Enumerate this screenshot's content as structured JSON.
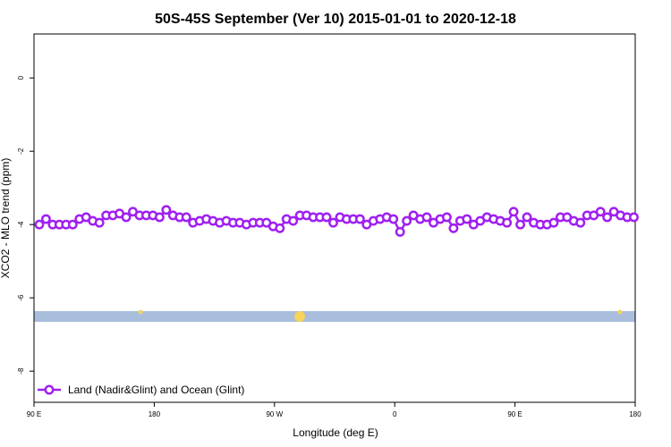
{
  "chart_data": {
    "type": "line",
    "title": "50S-45S September (Ver 10)   2015-01-01 to 2020-12-18",
    "x_label": "Longitude (deg E)",
    "y_label": "XCO2 - MLO trend (ppm)",
    "x": [
      94,
      99,
      104,
      109,
      114,
      119,
      124,
      129,
      134,
      139,
      144,
      149,
      154,
      159,
      164,
      169,
      174,
      179,
      184,
      189,
      194,
      199,
      204,
      209,
      214,
      219,
      224,
      229,
      234,
      239,
      244,
      249,
      254,
      259,
      264,
      269,
      274,
      279,
      284,
      289,
      294,
      299,
      304,
      309,
      314,
      319,
      324,
      329,
      334,
      339,
      344,
      349,
      354,
      359,
      364,
      369,
      374,
      379,
      384,
      389,
      394,
      399,
      404,
      409,
      414,
      419,
      424,
      429,
      434,
      439,
      444,
      449,
      454,
      459,
      464,
      469,
      474,
      479,
      484,
      489,
      494,
      499,
      504,
      509,
      514,
      519,
      524,
      529,
      534,
      539
    ],
    "series": [
      {
        "name": "Land (Nadir&Glint) and Ocean (Glint)",
        "color": "#a020f0",
        "values": [
          -4.0,
          -3.85,
          -4.0,
          -4.0,
          -4.0,
          -4.0,
          -3.85,
          -3.8,
          -3.9,
          -3.95,
          -3.75,
          -3.75,
          -3.7,
          -3.8,
          -3.65,
          -3.75,
          -3.75,
          -3.75,
          -3.8,
          -3.6,
          -3.75,
          -3.8,
          -3.8,
          -3.95,
          -3.9,
          -3.85,
          -3.9,
          -3.95,
          -3.9,
          -3.95,
          -3.95,
          -4.0,
          -3.95,
          -3.95,
          -3.95,
          -4.05,
          -4.1,
          -3.85,
          -3.9,
          -3.75,
          -3.75,
          -3.8,
          -3.8,
          -3.8,
          -3.95,
          -3.8,
          -3.85,
          -3.85,
          -3.85,
          -4.0,
          -3.9,
          -3.85,
          -3.8,
          -3.85,
          -4.2,
          -3.9,
          -3.75,
          -3.85,
          -3.8,
          -3.95,
          -3.85,
          -3.8,
          -4.1,
          -3.9,
          -3.85,
          -4.0,
          -3.9,
          -3.8,
          -3.85,
          -3.9,
          -3.95,
          -3.65,
          -4.0,
          -3.8,
          -3.95,
          -4.0,
          -4.0,
          -3.95,
          -3.8,
          -3.8,
          -3.9,
          -3.95,
          -3.75,
          -3.75,
          -3.65,
          -3.8,
          -3.65,
          -3.75,
          -3.8,
          -3.8
        ]
      }
    ],
    "xlim": [
      90,
      540
    ],
    "xticks": [
      {
        "value": 90,
        "label": "90 E"
      },
      180,
      {
        "value": 270,
        "label": "90 W"
      },
      {
        "value": 360,
        "label": "0"
      },
      {
        "value": 450,
        "label": "90 E"
      },
      {
        "value": 540,
        "label": "180"
      }
    ],
    "ylim": [
      -8.85,
      1.2
    ],
    "yticks": [
      0,
      -2,
      -4,
      -6,
      -8
    ],
    "legend": "bottom-left"
  }
}
